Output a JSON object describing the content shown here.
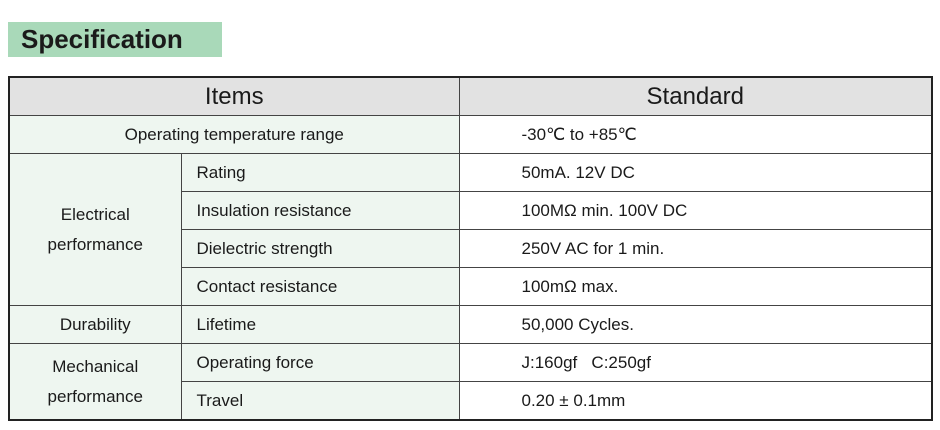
{
  "title": "Specification",
  "headers": {
    "items": "Items",
    "standard": "Standard"
  },
  "rows": {
    "temp": {
      "item": "Operating temperature range",
      "value": "-30℃ to +85℃"
    },
    "electrical": {
      "group": "Electrical performance",
      "rating": {
        "item": "Rating",
        "value": "50mA. 12V DC"
      },
      "insulation": {
        "item": "Insulation resistance",
        "value": "100MΩ min. 100V DC"
      },
      "dielectric": {
        "item": "Dielectric strength",
        "value": "250V AC for 1 min."
      },
      "contact": {
        "item": "Contact resistance",
        "value": "100mΩ max."
      }
    },
    "durability": {
      "group": "Durability",
      "item": "Lifetime",
      "value": "50,000 Cycles."
    },
    "mechanical": {
      "group": "Mechanical performance",
      "force": {
        "item": "Operating force",
        "value": "J:160gf   C:250gf"
      },
      "travel": {
        "item": "Travel",
        "value": "0.20 ± 0.1mm"
      }
    }
  },
  "colors": {
    "title_bg": "#a9d9b9",
    "header_bg": "#e2e2e2",
    "item_bg": "#eef6f0"
  }
}
